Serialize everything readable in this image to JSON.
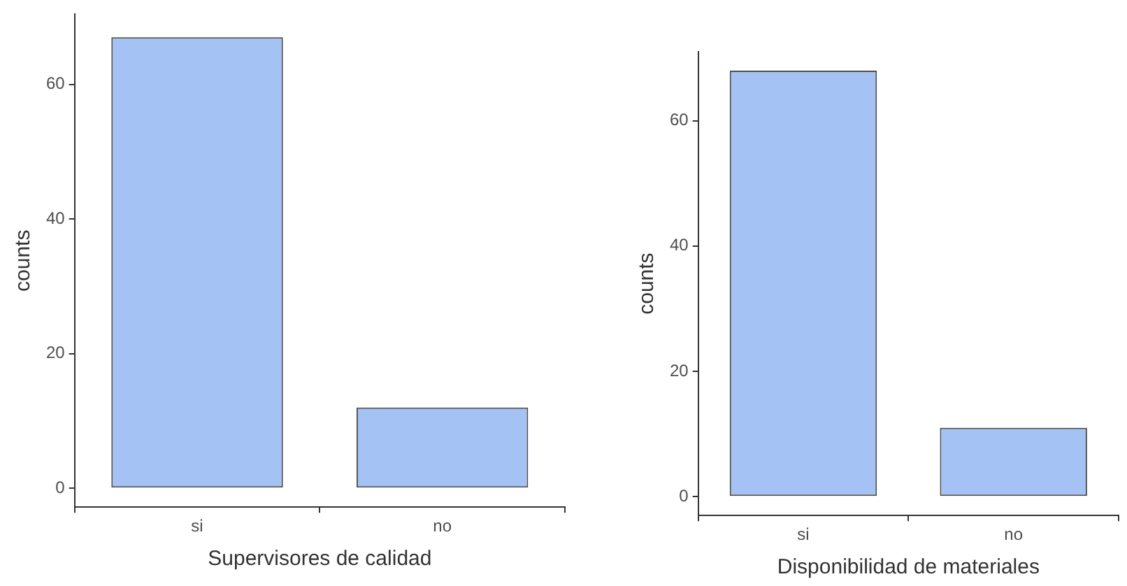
{
  "chart_data": [
    {
      "type": "bar",
      "xlabel": "Supervisores de calidad",
      "ylabel": "counts",
      "categories": [
        "si",
        "no"
      ],
      "values": [
        67,
        12
      ],
      "color": "#a4c2f4",
      "ylim": [
        -2.8,
        70.4
      ],
      "yticks": [
        0,
        20,
        40,
        60
      ],
      "grid": false,
      "legend": false
    },
    {
      "type": "bar",
      "xlabel": "Disponibilidad de materiales",
      "ylabel": "counts",
      "categories": [
        "si",
        "no"
      ],
      "values": [
        68,
        11
      ],
      "color": "#a4c2f4",
      "ylim": [
        -3,
        71
      ],
      "yticks": [
        0,
        20,
        40,
        60
      ],
      "grid": false,
      "legend": false
    }
  ]
}
